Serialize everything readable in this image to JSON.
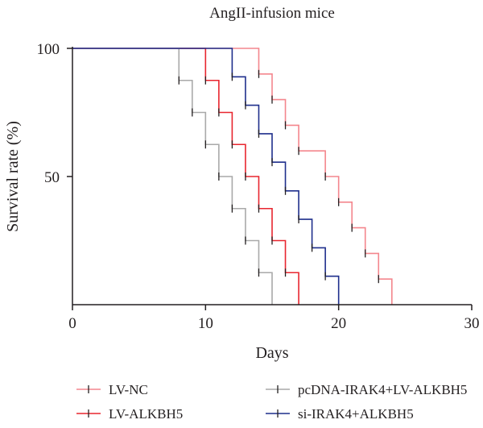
{
  "chart_data": {
    "type": "line",
    "title": "AngII-infusion mice",
    "xlabel": "Days",
    "ylabel": "Survival rate (%)",
    "xlim": [
      0,
      30
    ],
    "ylim": [
      0,
      100
    ],
    "xticks": [
      0,
      10,
      20,
      30
    ],
    "yticks": [
      50,
      100
    ],
    "grid": false,
    "legend_position": "bottom",
    "step": true,
    "series": [
      {
        "name": "LV-NC",
        "color": "#f4868d",
        "x": [
          0,
          14,
          15,
          16,
          17,
          19,
          20,
          21,
          22,
          23,
          24
        ],
        "y": [
          100,
          90,
          80,
          70,
          60,
          50,
          40,
          30,
          20,
          10,
          0
        ]
      },
      {
        "name": "LV-ALKBH5",
        "color": "#e8262f",
        "x": [
          0,
          10,
          11,
          12,
          13,
          14,
          15,
          16,
          17
        ],
        "y": [
          100,
          87.5,
          75,
          62.5,
          50,
          37.5,
          25,
          12.5,
          0
        ]
      },
      {
        "name": "pcDNA-IRAK4+LV-ALKBH5",
        "color": "#a9a9a9",
        "x": [
          0,
          8,
          9,
          10,
          11,
          12,
          13,
          14,
          15
        ],
        "y": [
          100,
          87.5,
          75,
          62.5,
          50,
          37.5,
          25,
          12.5,
          0
        ]
      },
      {
        "name": "si-IRAK4+ALKBH5",
        "color": "#1f2f8c",
        "x": [
          0,
          12,
          13,
          14,
          15,
          16,
          17,
          18,
          19,
          20
        ],
        "y": [
          100,
          88.9,
          77.8,
          66.7,
          55.6,
          44.4,
          33.3,
          22.2,
          11.1,
          0
        ]
      }
    ]
  }
}
